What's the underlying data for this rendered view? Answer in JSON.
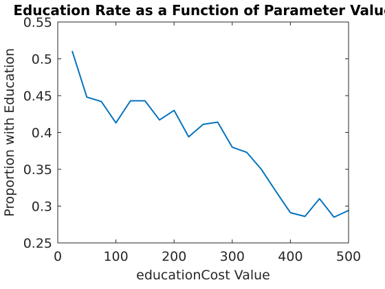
{
  "chart_data": {
    "type": "line",
    "title": "Education Rate as a Function of Parameter Value",
    "xlabel": "educationCost Value",
    "ylabel": "Proportion with Education",
    "xlim": [
      0,
      500
    ],
    "ylim": [
      0.25,
      0.55
    ],
    "xticks": [
      0,
      100,
      200,
      300,
      400,
      500
    ],
    "xtick_labels": [
      "0",
      "100",
      "200",
      "300",
      "400",
      "500"
    ],
    "yticks": [
      0.25,
      0.3,
      0.35,
      0.4,
      0.45,
      0.5,
      0.55
    ],
    "ytick_labels": [
      "0.25",
      "0.3",
      "0.35",
      "0.4",
      "0.45",
      "0.5",
      "0.55"
    ],
    "grid": false,
    "series": [
      {
        "color": "#0072BD",
        "x": [
          25,
          50,
          75,
          100,
          125,
          150,
          175,
          200,
          225,
          250,
          275,
          300,
          325,
          350,
          375,
          400,
          425,
          450,
          475,
          500
        ],
        "y": [
          0.51,
          0.448,
          0.442,
          0.413,
          0.443,
          0.443,
          0.417,
          0.43,
          0.394,
          0.411,
          0.414,
          0.38,
          0.373,
          0.35,
          0.32,
          0.291,
          0.286,
          0.31,
          0.285,
          0.294
        ]
      }
    ]
  }
}
